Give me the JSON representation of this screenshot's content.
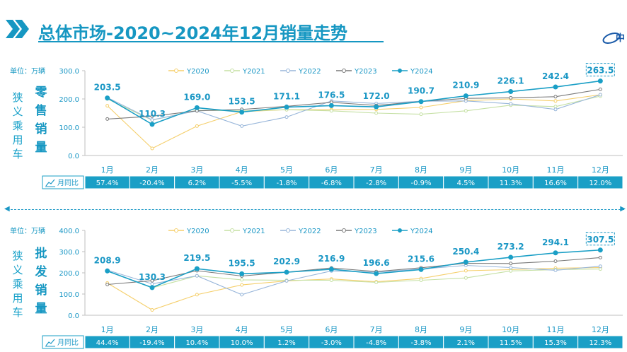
{
  "header": {
    "title": "总体市场-2020~2024年12月销量走势"
  },
  "panels": [
    {
      "unit_label": "单位：万辆",
      "vehicle_label": "狭义乘用车",
      "metric_label": "零售销量",
      "yoy_label": "月同比"
    },
    {
      "unit_label": "单位：万辆",
      "vehicle_label": "狭义乘用车",
      "metric_label": "批发销量",
      "yoy_label": "月同比"
    }
  ],
  "chart_data": [
    {
      "type": "line",
      "categories": [
        "1月",
        "2月",
        "3月",
        "4月",
        "5月",
        "6月",
        "7月",
        "8月",
        "9月",
        "10月",
        "11月",
        "12月"
      ],
      "ylim": [
        0,
        300
      ],
      "yticks": [
        "0.0",
        "100.0",
        "200.0",
        "300.0"
      ],
      "series": [
        {
          "name": "Y2020",
          "color": "#f5cf6b",
          "values": [
            176,
            25,
            104,
            155,
            162,
            162,
            163,
            170,
            194,
            200,
            193,
            215
          ]
        },
        {
          "name": "Y2021",
          "color": "#c5e0a4",
          "values": [
            200,
            125,
            160,
            158,
            162,
            158,
            150,
            146,
            158,
            178,
            173,
            210
          ]
        },
        {
          "name": "Y2022",
          "color": "#98b6da",
          "values": [
            205,
            126,
            158,
            104,
            136,
            193,
            184,
            192,
            193,
            183,
            163,
            215
          ]
        },
        {
          "name": "Y2023",
          "color": "#7a7a7a",
          "values": [
            129,
            139,
            158,
            163,
            174,
            188,
            177,
            191,
            202,
            204,
            208,
            234
          ]
        },
        {
          "name": "Y2024",
          "color": "#1a9fc6",
          "values": [
            203.5,
            110.3,
            169.0,
            153.5,
            171.1,
            176.5,
            172.0,
            190.7,
            210.9,
            226.1,
            242.4,
            263.5
          ]
        }
      ],
      "labels": [
        "203.5",
        "110.3",
        "169.0",
        "153.5",
        "171.1",
        "176.5",
        "172.0",
        "190.7",
        "210.9",
        "226.1",
        "242.4",
        "263.5"
      ],
      "yoy": [
        "57.4%",
        "-20.4%",
        "6.2%",
        "-5.5%",
        "-1.8%",
        "-6.8%",
        "-2.8%",
        "-0.9%",
        "4.5%",
        "11.3%",
        "16.6%",
        "12.0%"
      ]
    },
    {
      "type": "line",
      "categories": [
        "1月",
        "2月",
        "3月",
        "4月",
        "5月",
        "6月",
        "7月",
        "8月",
        "9月",
        "10月",
        "11月",
        "12月"
      ],
      "ylim": [
        0,
        400
      ],
      "yticks": [
        "0.0",
        "100.0",
        "200.0",
        "300.0",
        "400.0"
      ],
      "series": [
        {
          "name": "Y2020",
          "color": "#f5cf6b",
          "values": [
            152,
            25,
            97,
            143,
            162,
            171,
            158,
            173,
            210,
            215,
            222,
            225
          ]
        },
        {
          "name": "Y2021",
          "color": "#c5e0a4",
          "values": [
            209,
            129,
            186,
            167,
            165,
            165,
            155,
            165,
            176,
            209,
            215,
            218
          ]
        },
        {
          "name": "Y2022",
          "color": "#98b6da",
          "values": [
            213,
            148,
            186,
            97,
            162,
            209,
            203,
            218,
            235,
            225,
            212,
            231
          ]
        },
        {
          "name": "Y2023",
          "color": "#7a7a7a",
          "values": [
            145,
            163,
            210,
            185,
            203,
            223,
            206,
            224,
            245,
            244,
            255,
            272
          ]
        },
        {
          "name": "Y2024",
          "color": "#1a9fc6",
          "values": [
            208.9,
            130.3,
            219.5,
            195.5,
            202.9,
            216.9,
            196.6,
            215.6,
            250.4,
            273.2,
            294.1,
            307.5
          ]
        }
      ],
      "labels": [
        "208.9",
        "130.3",
        "219.5",
        "195.5",
        "202.9",
        "216.9",
        "196.6",
        "215.6",
        "250.4",
        "273.2",
        "294.1",
        "307.5"
      ],
      "yoy": [
        "44.4%",
        "-19.4%",
        "10.4%",
        "10.0%",
        "1.2%",
        "-3.0%",
        "-4.8%",
        "-3.8%",
        "2.1%",
        "11.5%",
        "15.3%",
        "12.3%"
      ]
    }
  ]
}
